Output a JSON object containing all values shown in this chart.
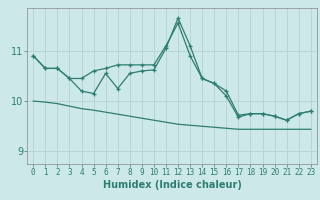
{
  "xlabel": "Humidex (Indice chaleur)",
  "bg_color": "#cce8e8",
  "grid_color": "#b8d4d4",
  "line_color": "#2e7d72",
  "x_values": [
    0,
    1,
    2,
    3,
    4,
    5,
    6,
    7,
    8,
    9,
    10,
    11,
    12,
    13,
    14,
    15,
    16,
    17,
    18,
    19,
    20,
    21,
    22,
    23
  ],
  "line1_y": [
    10.9,
    10.65,
    10.65,
    10.45,
    10.45,
    10.6,
    10.65,
    10.72,
    10.72,
    10.72,
    10.72,
    11.1,
    11.55,
    10.9,
    10.45,
    10.35,
    10.2,
    9.72,
    9.75,
    9.75,
    9.7,
    9.62,
    9.75,
    9.8
  ],
  "line2_y": [
    10.9,
    10.65,
    10.65,
    10.45,
    10.2,
    10.15,
    10.55,
    10.25,
    10.55,
    10.6,
    10.62,
    11.05,
    11.65,
    11.1,
    10.45,
    10.35,
    10.1,
    9.68,
    9.75,
    9.75,
    9.7,
    9.62,
    9.75,
    9.8
  ],
  "line3_y": [
    10.0,
    9.98,
    9.95,
    9.9,
    9.85,
    9.82,
    9.78,
    9.74,
    9.7,
    9.66,
    9.62,
    9.58,
    9.54,
    9.52,
    9.5,
    9.48,
    9.46,
    9.44,
    9.44,
    9.44,
    9.44,
    9.44,
    9.44,
    9.44
  ],
  "ylim": [
    8.75,
    11.85
  ],
  "yticks": [
    9,
    10,
    11
  ],
  "xticks": [
    0,
    1,
    2,
    3,
    4,
    5,
    6,
    7,
    8,
    9,
    10,
    11,
    12,
    13,
    14,
    15,
    16,
    17,
    18,
    19,
    20,
    21,
    22,
    23
  ]
}
